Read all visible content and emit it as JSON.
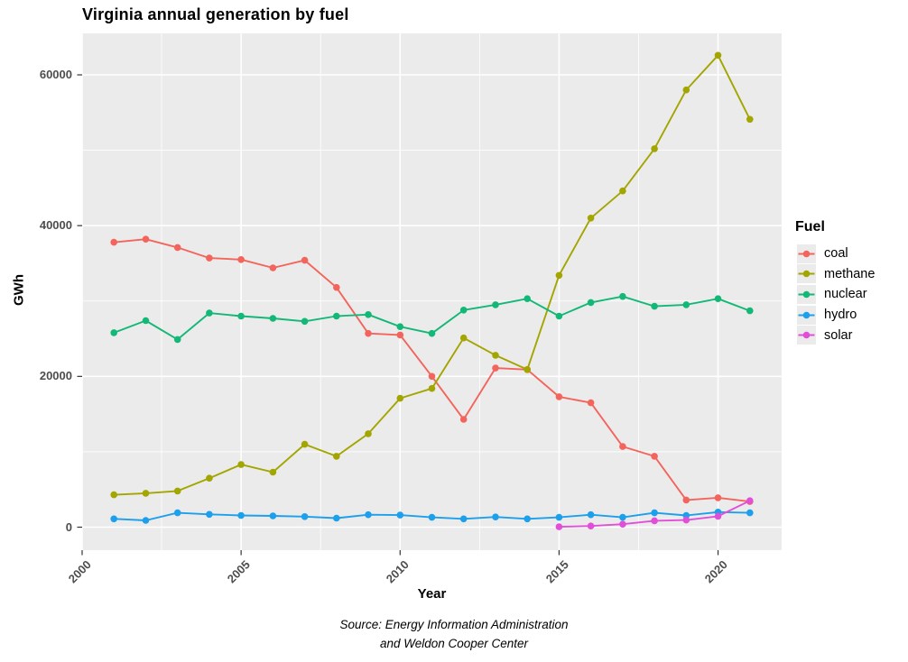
{
  "title": "Virginia annual generation by fuel",
  "caption": {
    "line1": "Source: Energy Information Administration",
    "line2": "and Weldon Cooper Center"
  },
  "axes": {
    "x_label": "Year",
    "y_label": "GWh",
    "x_tick_labels": [
      "2000",
      "2005",
      "2010",
      "2015",
      "2020"
    ],
    "y_tick_labels": [
      "0",
      "20000",
      "40000",
      "60000"
    ]
  },
  "legend": {
    "title": "Fuel",
    "position": "right",
    "key_background": "#ebebeb"
  },
  "style_colors": {
    "panel_background": "#ebebeb",
    "gridline": "#ffffff",
    "tick_text": "#4d4d4d"
  },
  "chart_data": {
    "type": "line",
    "title": "Virginia annual generation by fuel",
    "xlabel": "Year",
    "ylabel": "GWh",
    "xlim": [
      2000,
      2022
    ],
    "ylim": [
      -3000,
      65500
    ],
    "grid": true,
    "legend_position": "right",
    "x_major_ticks": [
      2000,
      2005,
      2010,
      2015,
      2020
    ],
    "x_minor_ticks": [
      2002.5,
      2007.5,
      2012.5,
      2017.5
    ],
    "y_major_ticks": [
      0,
      20000,
      40000,
      60000
    ],
    "y_minor_ticks": [
      10000,
      30000,
      50000
    ],
    "x": [
      2001,
      2002,
      2003,
      2004,
      2005,
      2006,
      2007,
      2008,
      2009,
      2010,
      2011,
      2012,
      2013,
      2014,
      2015,
      2016,
      2017,
      2018,
      2019,
      2020,
      2021
    ],
    "series": [
      {
        "name": "coal",
        "color": "#f3655c",
        "values": [
          37800,
          38200,
          37100,
          35700,
          35500,
          34400,
          35400,
          31800,
          25700,
          25500,
          20000,
          14300,
          21100,
          20900,
          17300,
          16500,
          10700,
          9400,
          3600,
          3900,
          3400
        ]
      },
      {
        "name": "methane",
        "color": "#a3a500",
        "values": [
          4300,
          4500,
          4800,
          6500,
          8300,
          7300,
          11000,
          9400,
          12400,
          17100,
          18400,
          25100,
          22800,
          20900,
          33400,
          41000,
          44600,
          50200,
          58000,
          62600,
          54100
        ]
      },
      {
        "name": "nuclear",
        "color": "#13b877",
        "values": [
          25800,
          27400,
          24900,
          28400,
          28000,
          27700,
          27300,
          28000,
          28200,
          26600,
          25700,
          28800,
          29500,
          30300,
          28000,
          29800,
          30600,
          29300,
          29500,
          30300,
          28700
        ]
      },
      {
        "name": "hydro",
        "color": "#1ca0ec",
        "values": [
          1100,
          900,
          1900,
          1700,
          1550,
          1500,
          1400,
          1200,
          1650,
          1600,
          1300,
          1100,
          1350,
          1100,
          1300,
          1650,
          1300,
          1900,
          1550,
          2000,
          1900
        ]
      },
      {
        "name": "solar",
        "color": "#e14fd9",
        "values": [
          null,
          null,
          null,
          null,
          null,
          null,
          null,
          null,
          null,
          null,
          null,
          null,
          null,
          null,
          50,
          150,
          400,
          850,
          950,
          1450,
          3500
        ]
      }
    ]
  }
}
